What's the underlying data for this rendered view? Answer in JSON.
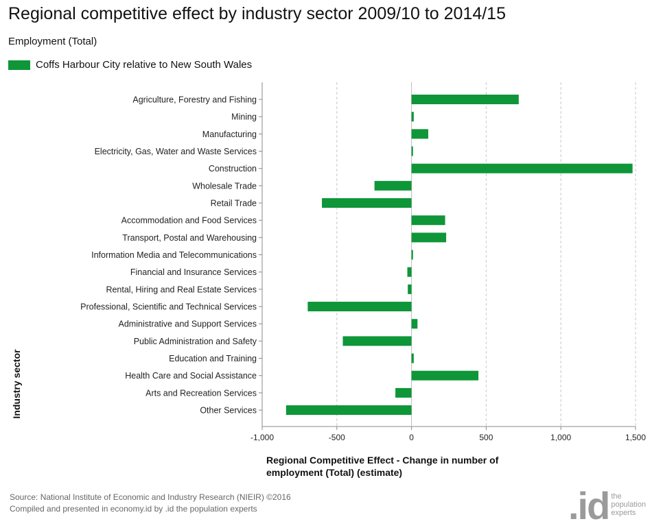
{
  "header": {
    "title": "Regional competitive effect by industry sector 2009/10 to 2014/15",
    "subtitle": "Employment (Total)"
  },
  "legend": {
    "label": "Coffs Harbour City relative to New South Wales",
    "color": "#0e9639"
  },
  "footer": {
    "source_line1": "Source: National Institute of Economic and Industry Research (NIEIR) ©2016",
    "source_line2": "Compiled and presented in economy.id by .id the population experts"
  },
  "logo": {
    "mark": ".id",
    "line1": "the",
    "line2": "population",
    "line3": "experts"
  },
  "chart_data": {
    "type": "bar",
    "orientation": "horizontal",
    "title": "Regional competitive effect by industry sector 2009/10 to 2014/15",
    "subtitle": "Employment (Total)",
    "ylabel": "Industry sector",
    "xlabel": "Regional Competitive Effect - Change in number of employment (Total) (estimate)",
    "xlim": [
      -1000,
      1500
    ],
    "xticks": [
      -1000,
      -500,
      0,
      500,
      1000,
      1500
    ],
    "xtick_labels": [
      "-1,000",
      "-500",
      "0",
      "500",
      "1,000",
      "1,500"
    ],
    "grid": "vertical dashed",
    "legend_position": "top-left",
    "categories": [
      "Agriculture, Forestry and Fishing",
      "Mining",
      "Manufacturing",
      "Electricity, Gas, Water and Waste Services",
      "Construction",
      "Wholesale Trade",
      "Retail Trade",
      "Accommodation and Food Services",
      "Transport, Postal and Warehousing",
      "Information Media and Telecommunications",
      "Financial and Insurance Services",
      "Rental, Hiring and Real Estate Services",
      "Professional, Scientific and Technical Services",
      "Administrative and Support Services",
      "Public Administration and Safety",
      "Education and Training",
      "Health Care and Social Assistance",
      "Arts and Recreation Services",
      "Other Services"
    ],
    "series": [
      {
        "name": "Coffs Harbour City relative to New South Wales",
        "color": "#0e9639",
        "values": [
          718,
          15,
          112,
          10,
          1480,
          -248,
          -600,
          225,
          232,
          10,
          -28,
          -25,
          -695,
          40,
          -460,
          15,
          448,
          -108,
          -840
        ]
      }
    ]
  }
}
